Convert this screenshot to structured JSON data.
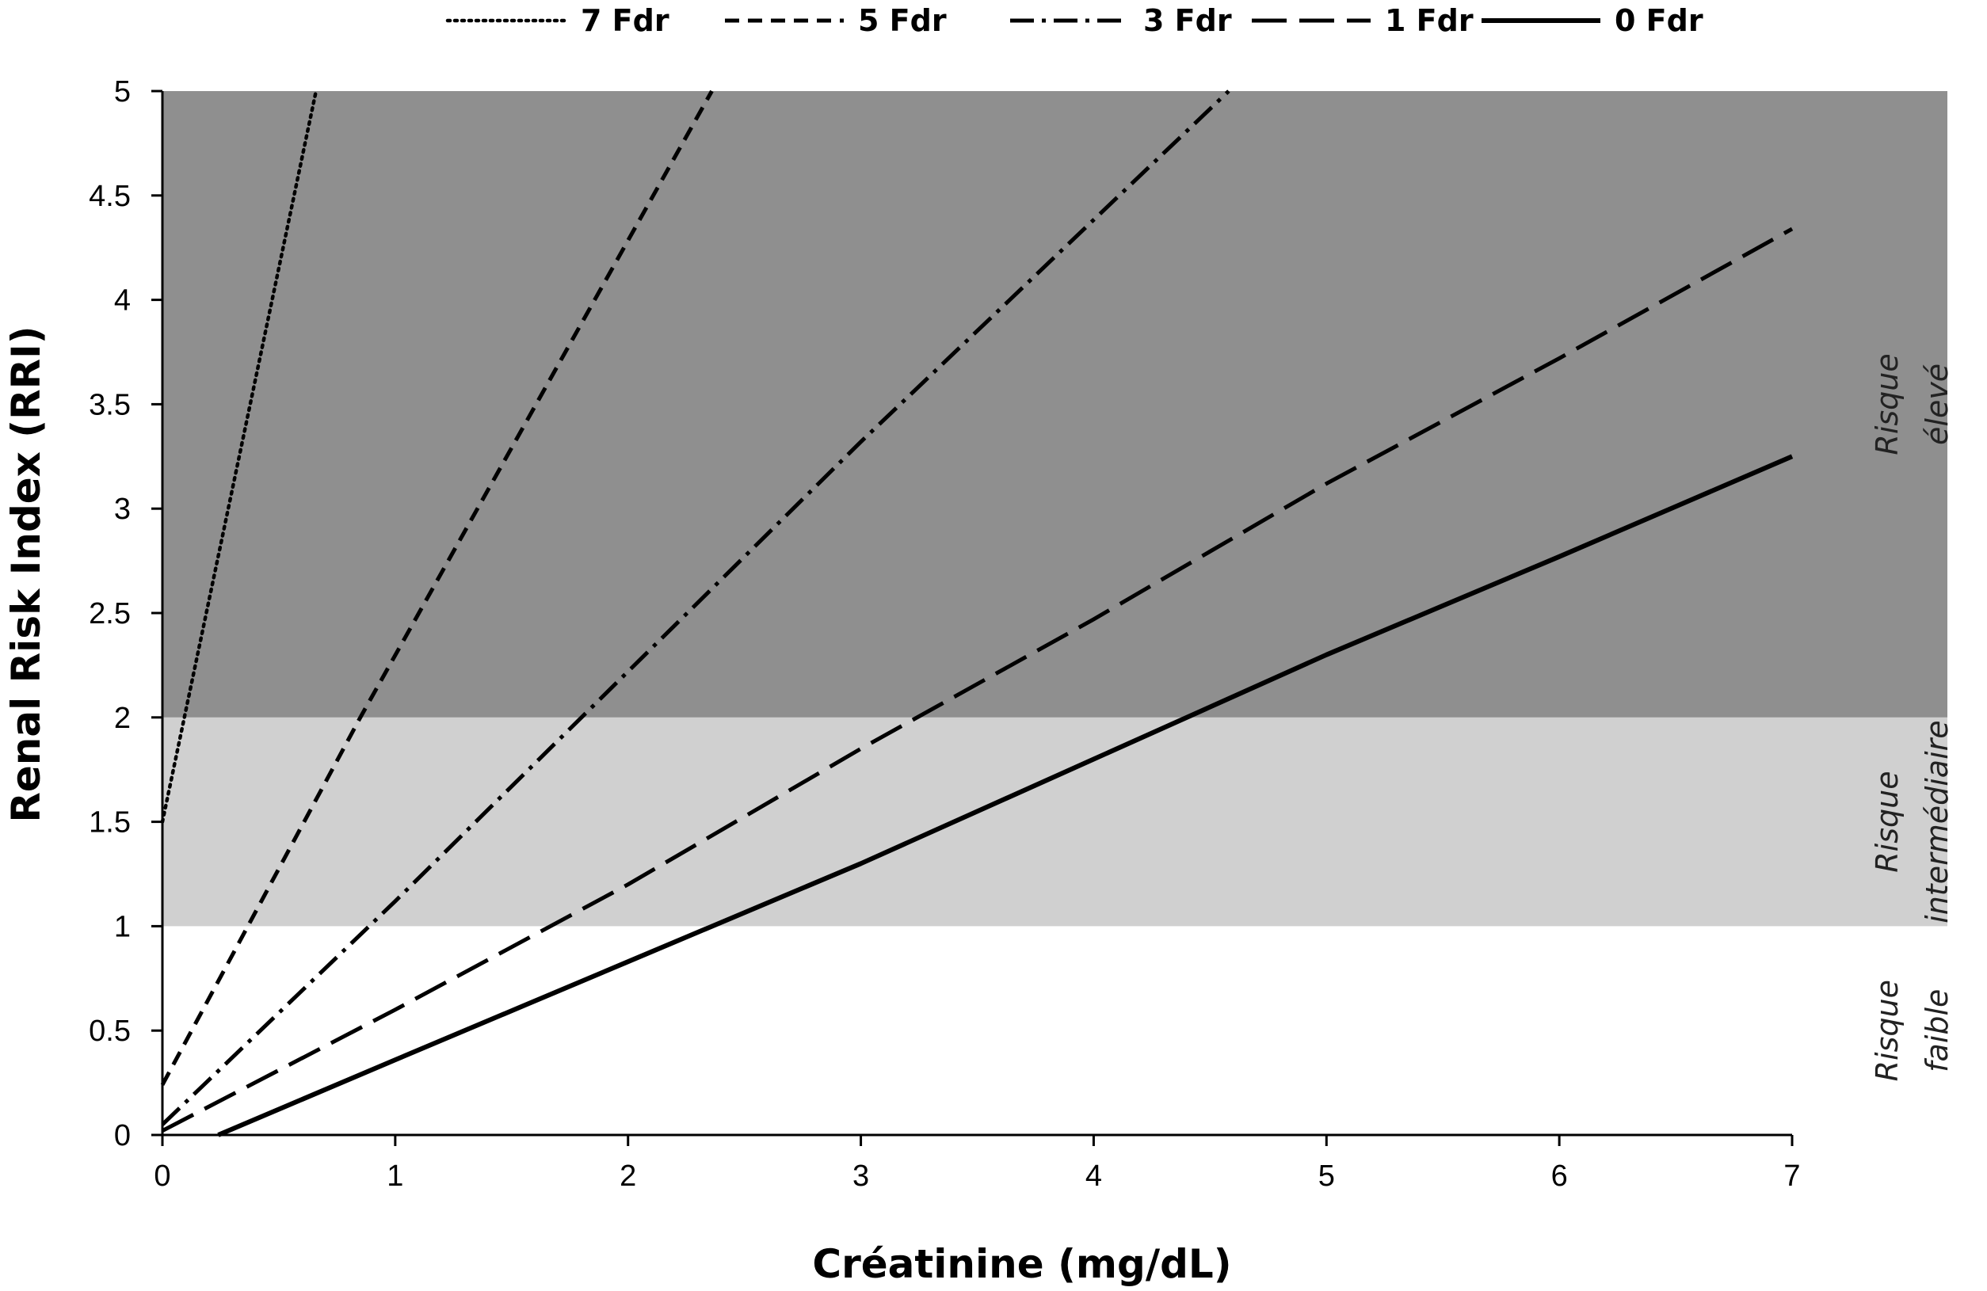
{
  "chart_data": {
    "type": "line",
    "xlabel": "Créatinine (mg/dL)",
    "ylabel": "Renal Risk Index (RRI)",
    "xlim": [
      0,
      7
    ],
    "ylim": [
      0,
      5
    ],
    "x_ticks": [
      "0",
      "1",
      "2",
      "3",
      "4",
      "5",
      "6",
      "7"
    ],
    "y_ticks": [
      "0",
      "0.5",
      "1",
      "1.5",
      "2",
      "2.5",
      "3",
      "3.5",
      "4",
      "4.5",
      "5"
    ],
    "grid": false,
    "legend_position": "top",
    "series": [
      {
        "name": "7 Fdr",
        "style": "dotted",
        "x": [
          0,
          0.66
        ],
        "y": [
          1.5,
          5.0
        ]
      },
      {
        "name": "5 Fdr",
        "style": "dashed",
        "x": [
          0,
          0.85,
          2.36
        ],
        "y": [
          0.24,
          2.0,
          5.0
        ]
      },
      {
        "name": "3 Fdr",
        "style": "dash-dot",
        "x": [
          0,
          1.0,
          2.0,
          3.0,
          4.58
        ],
        "y": [
          0.05,
          1.12,
          2.22,
          3.32,
          5.0
        ]
      },
      {
        "name": "1 Fdr",
        "style": "long-dash",
        "x": [
          0,
          1.0,
          2.0,
          3.0,
          4.0,
          5.0,
          6.0,
          7.0
        ],
        "y": [
          0.02,
          0.6,
          1.2,
          1.85,
          2.47,
          3.12,
          3.72,
          4.34
        ]
      },
      {
        "name": "0 Fdr",
        "style": "solid",
        "x": [
          0.24,
          1.0,
          2.0,
          3.0,
          4.0,
          5.0,
          6.0,
          7.0
        ],
        "y": [
          0.0,
          0.36,
          0.83,
          1.3,
          1.8,
          2.3,
          2.77,
          3.25
        ]
      }
    ],
    "zones": [
      {
        "label_line1": "Risque",
        "label_line2": "faible",
        "y_from": 0,
        "y_to": 1,
        "color": "#ffffff"
      },
      {
        "label_line1": "Risque",
        "label_line2": "intermédiaire",
        "y_from": 1,
        "y_to": 2,
        "color": "#d0d0d0"
      },
      {
        "label_line1": "Risque",
        "label_line2": "élevé",
        "y_from": 2,
        "y_to": 5,
        "color": "#8f8f8f"
      }
    ]
  }
}
